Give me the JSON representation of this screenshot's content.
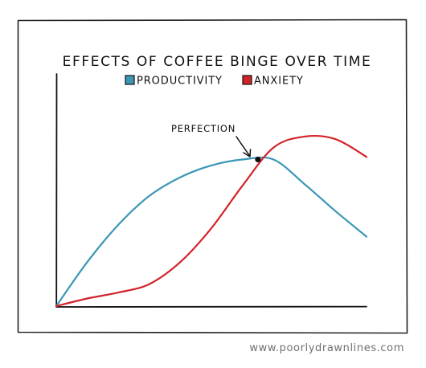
{
  "chart_data": {
    "type": "line",
    "title": "EFFECTS OF COFFEE BINGE OVER TIME",
    "xlabel": "",
    "ylabel": "",
    "grid": false,
    "axis_ticks": false,
    "legend_placement": "top-center",
    "x": [
      0,
      1,
      2,
      3,
      4,
      5,
      6,
      7,
      8,
      9,
      10
    ],
    "xlim": [
      0,
      10
    ],
    "ylim": [
      0,
      10
    ],
    "series": [
      {
        "name": "PRODUCTIVITY",
        "color": "#3b97b6",
        "values": [
          0.0,
          2.6,
          4.8,
          6.5,
          7.6,
          8.3,
          8.65,
          8.65,
          7.2,
          5.6,
          4.1
        ]
      },
      {
        "name": "ANXIETY",
        "color": "#d2232a",
        "values": [
          0.0,
          0.45,
          0.8,
          1.3,
          2.6,
          4.6,
          7.1,
          9.35,
          10.0,
          9.85,
          8.8
        ]
      }
    ],
    "annotations": [
      {
        "text": "PERFECTION",
        "x": 6.5,
        "y": 8.65
      }
    ]
  },
  "credit": "www.poorlydrawnlines.com"
}
